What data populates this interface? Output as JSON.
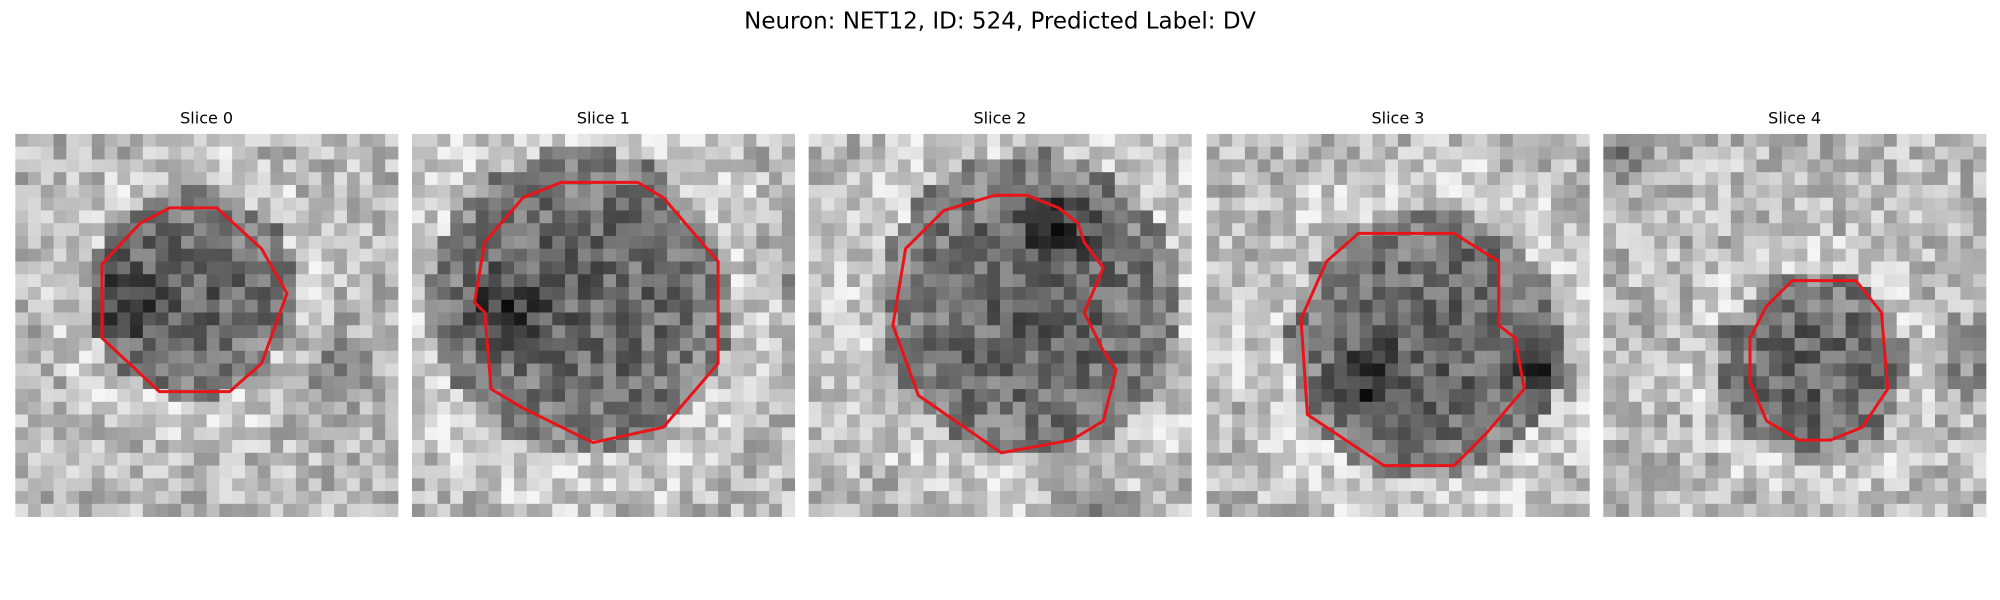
{
  "figure": {
    "title": "Neuron: NET12, ID: 524, Predicted Label: DV",
    "panels": [
      {
        "title": "Slice 0"
      },
      {
        "title": "Slice 1"
      },
      {
        "title": "Slice 2"
      },
      {
        "title": "Slice 3"
      },
      {
        "title": "Slice 4"
      }
    ]
  }
}
